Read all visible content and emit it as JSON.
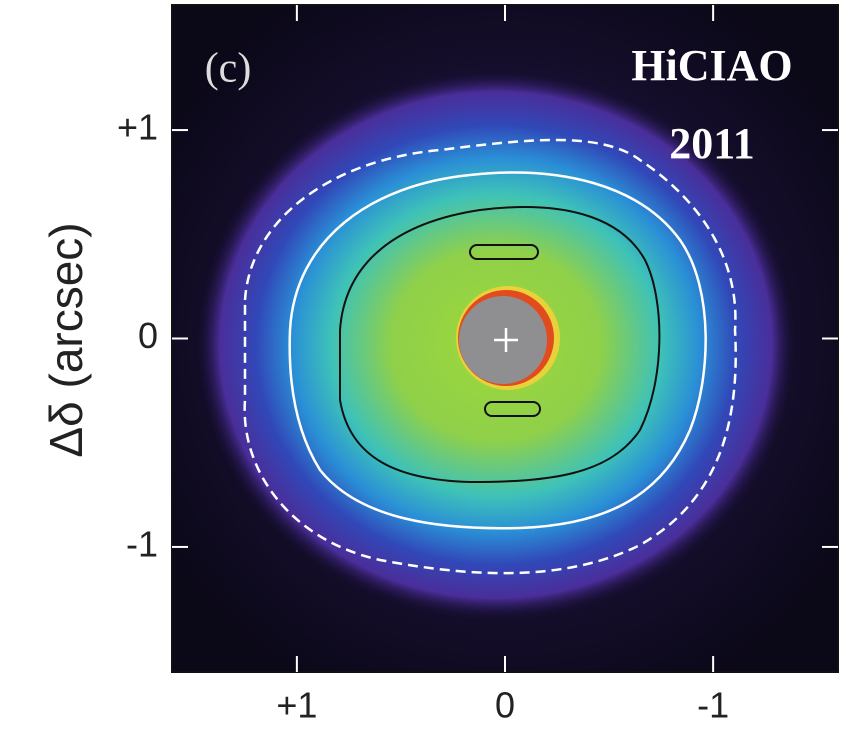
{
  "chart_data": {
    "type": "image",
    "panel_label": "(c)",
    "annotation": [
      "HiCIAO",
      "2011"
    ],
    "ylabel": "Δδ (arcsec)",
    "xlim": [
      1.6,
      -1.6
    ],
    "ylim": [
      -1.6,
      1.6
    ],
    "xticks": [
      {
        "value": 1,
        "label": "+1"
      },
      0,
      -1
    ],
    "yticks": [
      {
        "value": 1,
        "label": "+1"
      },
      0,
      -1
    ]
  }
}
